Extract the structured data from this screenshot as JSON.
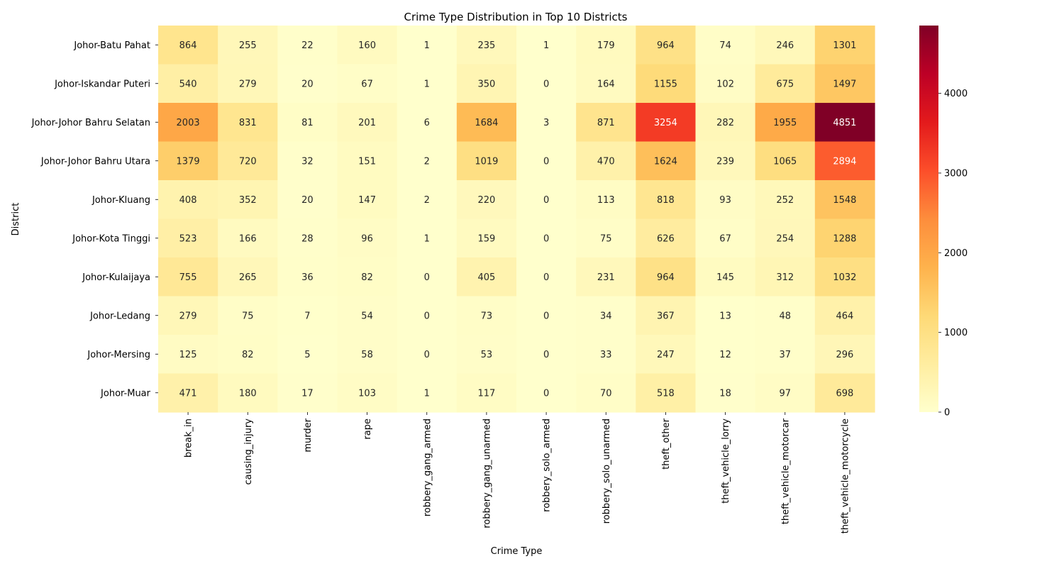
{
  "chart_data": {
    "type": "heatmap",
    "title": "Crime Type Distribution in Top 10 Districts",
    "xlabel": "Crime Type",
    "ylabel": "District",
    "colormap": "YlOrRd",
    "colorbar": {
      "min": 0,
      "max": 4851,
      "ticks": [
        0,
        1000,
        2000,
        3000,
        4000
      ]
    },
    "columns": [
      "break_in",
      "causing_injury",
      "murder",
      "rape",
      "robbery_gang_armed",
      "robbery_gang_unarmed",
      "robbery_solo_armed",
      "robbery_solo_unarmed",
      "theft_other",
      "theft_vehicle_lorry",
      "theft_vehicle_motorcar",
      "theft_vehicle_motorcycle"
    ],
    "rows": [
      "Johor-Batu Pahat",
      "Johor-Iskandar Puteri",
      "Johor-Johor Bahru Selatan",
      "Johor-Johor Bahru Utara",
      "Johor-Kluang",
      "Johor-Kota Tinggi",
      "Johor-Kulaijaya",
      "Johor-Ledang",
      "Johor-Mersing",
      "Johor-Muar"
    ],
    "values": [
      [
        864,
        255,
        22,
        160,
        1,
        235,
        1,
        179,
        964,
        74,
        246,
        1301
      ],
      [
        540,
        279,
        20,
        67,
        1,
        350,
        0,
        164,
        1155,
        102,
        675,
        1497
      ],
      [
        2003,
        831,
        81,
        201,
        6,
        1684,
        3,
        871,
        3254,
        282,
        1955,
        4851
      ],
      [
        1379,
        720,
        32,
        151,
        2,
        1019,
        0,
        470,
        1624,
        239,
        1065,
        2894
      ],
      [
        408,
        352,
        20,
        147,
        2,
        220,
        0,
        113,
        818,
        93,
        252,
        1548
      ],
      [
        523,
        166,
        28,
        96,
        1,
        159,
        0,
        75,
        626,
        67,
        254,
        1288
      ],
      [
        755,
        265,
        36,
        82,
        0,
        405,
        0,
        231,
        964,
        145,
        312,
        1032
      ],
      [
        279,
        75,
        7,
        54,
        0,
        73,
        0,
        34,
        367,
        13,
        48,
        464
      ],
      [
        125,
        82,
        5,
        58,
        0,
        53,
        0,
        33,
        247,
        12,
        37,
        296
      ],
      [
        471,
        180,
        17,
        103,
        1,
        117,
        0,
        70,
        518,
        18,
        97,
        698
      ]
    ]
  }
}
